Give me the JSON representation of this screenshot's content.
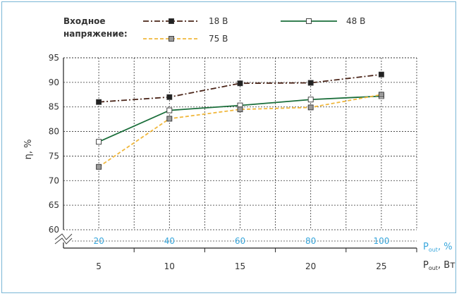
{
  "chart_data": {
    "type": "line",
    "ylabel": "η, %",
    "ylim": [
      60,
      95
    ],
    "yticks": [
      60,
      65,
      70,
      75,
      80,
      85,
      90,
      95
    ],
    "xlabel_bottom": {
      "main": "P",
      "sub": "out",
      "unit": ", Вт"
    },
    "xlabel_top": {
      "main": "P",
      "sub": "out",
      "unit": ", %"
    },
    "x": [
      5,
      10,
      15,
      20,
      25
    ],
    "x_percent": [
      "20",
      "40",
      "60",
      "80",
      "100"
    ],
    "xlim": [
      2.5,
      27.5
    ],
    "grid": true,
    "legend": {
      "title_line1": "Входное",
      "title_line2": "напряжение:",
      "placement": "top"
    },
    "series": [
      {
        "name": "18 В",
        "values": [
          86.0,
          87.0,
          89.8,
          89.9,
          91.6
        ],
        "color": "#4a2418",
        "marker_fill": "#222222",
        "style": "dashdot"
      },
      {
        "name": "48 В",
        "values": [
          77.9,
          84.3,
          85.3,
          86.5,
          87.2
        ],
        "color": "#1a6e3a",
        "marker_fill": "#ffffff",
        "style": "solid"
      },
      {
        "name": "75 В",
        "values": [
          72.8,
          82.6,
          84.5,
          84.9,
          87.5
        ],
        "color": "#f0b73c",
        "marker_fill": "#9a9a9a",
        "style": "dashed"
      }
    ]
  }
}
